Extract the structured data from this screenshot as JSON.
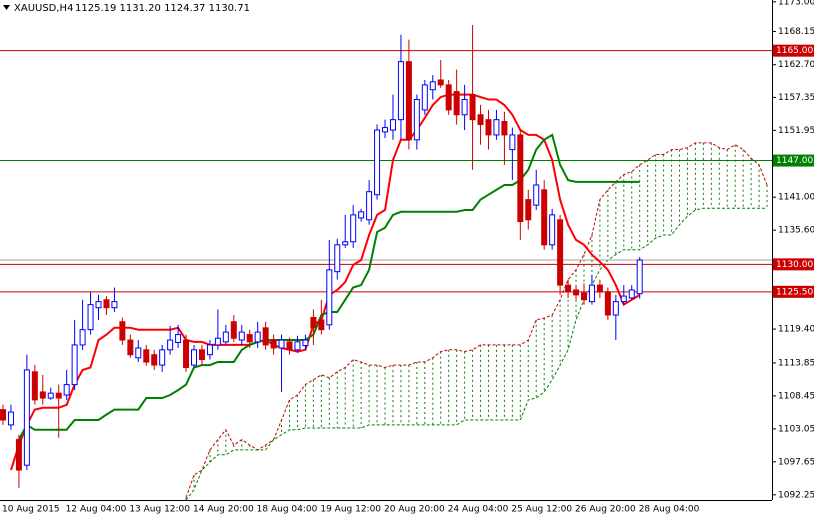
{
  "chart_data": {
    "type": "candlestick",
    "title": "XAUUSD,H4",
    "subtitle": "1125.19 1131.20 1124.37 1130.71",
    "categories": [
      "10 Aug 2015",
      null,
      null,
      null,
      null,
      null,
      null,
      null,
      "12 Aug 04:00",
      null,
      null,
      null,
      null,
      null,
      null,
      null,
      "13 Aug 12:00",
      null,
      null,
      null,
      null,
      null,
      null,
      null,
      "14 Aug 20:00",
      null,
      null,
      null,
      null,
      null,
      null,
      null,
      "18 Aug 04:00",
      null,
      null,
      null,
      null,
      null,
      null,
      null,
      "19 Aug 12:00",
      null,
      null,
      null,
      null,
      null,
      null,
      null,
      "20 Aug 20:00",
      null,
      null,
      null,
      null,
      null,
      null,
      null,
      "24 Aug 04:00",
      null,
      null,
      null,
      null,
      null,
      null,
      null,
      "25 Aug 12:00",
      null,
      null,
      null,
      null,
      null,
      null,
      null,
      "26 Aug 20:00",
      null,
      null,
      null,
      null,
      null,
      null,
      null,
      "28 Aug 04:00",
      null,
      null,
      null,
      null,
      null,
      null,
      null,
      null,
      null,
      null,
      null,
      null,
      null,
      null,
      null,
      null
    ],
    "open": [
      1106.2,
      1103.7,
      1101.3,
      1097.1,
      1112.4,
      1109.1,
      1108.1,
      1108.9,
      1108.6,
      1110.3,
      1116.8,
      1119.3,
      1122.9,
      1124.2,
      1122.9,
      1120.6,
      1117.6,
      1114.7,
      1116.0,
      1115.2,
      1113.5,
      1116.0,
      1117.2,
      1117.6,
      1113.5,
      1116.0,
      1115.2,
      1116.8,
      1117.3,
      1120.6,
      1117.6,
      1118.5,
      1117.3,
      1119.6,
      1117.6,
      1116.3,
      1117.3,
      1116.0,
      1116.7,
      1121.3,
      1120.9,
      1120.1,
      1128.8,
      1133.2,
      1133.7,
      1137.6,
      1137.3,
      1141.4,
      1151.7,
      1152.0,
      1153.7,
      1163.2,
      1150.4,
      1155.3,
      1158.6,
      1160.2,
      1159.4,
      1158.3,
      1154.5,
      1157.8,
      1154.5,
      1153.7,
      1151.2,
      1153.4,
      1148.8,
      1151.2,
      1140.6,
      1139.7,
      1142.2,
      1133.2,
      1137.3,
      1126.6,
      1125.8,
      1125.3,
      1123.9,
      1126.6,
      1125.5,
      1121.7,
      1123.9,
      1124.5,
      1125.19,
      null,
      null,
      null,
      null,
      null,
      null,
      null,
      null,
      null,
      null,
      null,
      null,
      null,
      null,
      null,
      null
    ],
    "high": [
      1107.0,
      1107.0,
      1102.1,
      1115.2,
      1113.5,
      1111.9,
      1109.8,
      1110.3,
      1112.7,
      1120.9,
      1124.2,
      1125.5,
      1125.0,
      1124.8,
      1126.2,
      1121.3,
      1118.5,
      1117.6,
      1116.8,
      1116.0,
      1116.8,
      1119.9,
      1120.1,
      1118.5,
      1116.8,
      1116.8,
      1117.6,
      1122.6,
      1120.1,
      1121.7,
      1120.1,
      1119.3,
      1120.6,
      1120.6,
      1118.5,
      1118.5,
      1118.0,
      1118.3,
      1118.5,
      1122.6,
      1124.2,
      1134.0,
      1134.2,
      1138.1,
      1139.7,
      1139.1,
      1143.8,
      1152.9,
      1153.7,
      1157.8,
      1167.6,
      1166.8,
      1157.8,
      1160.2,
      1161.0,
      1163.5,
      1160.2,
      1161.9,
      1159.4,
      1169.2,
      1156.1,
      1155.3,
      1155.3,
      1155.0,
      1152.4,
      1152.0,
      1142.2,
      1145.5,
      1143.8,
      1139.1,
      1138.1,
      1127.5,
      1126.6,
      1126.9,
      1128.3,
      1127.5,
      1126.2,
      1125.0,
      1126.6,
      1126.6,
      1131.2,
      null,
      null,
      null,
      null,
      null,
      null,
      null,
      null,
      null,
      null,
      null,
      null,
      null,
      null,
      null,
      null
    ],
    "low": [
      1103.7,
      1102.9,
      1093.4,
      1096.3,
      1107.0,
      1107.0,
      1107.8,
      1101.6,
      1107.8,
      1109.4,
      1116.0,
      1118.5,
      1120.9,
      1121.7,
      1122.2,
      1116.8,
      1114.7,
      1114.0,
      1113.4,
      1112.7,
      1112.4,
      1115.2,
      1116.3,
      1112.4,
      1113.1,
      1113.5,
      1114.4,
      1116.0,
      1116.8,
      1117.3,
      1116.8,
      1116.3,
      1116.3,
      1116.0,
      1115.2,
      1109.1,
      1115.2,
      1115.5,
      1116.0,
      1116.8,
      1118.5,
      1119.3,
      1127.5,
      1132.7,
      1132.7,
      1137.0,
      1136.5,
      1140.6,
      1150.7,
      1150.4,
      1150.4,
      1148.8,
      1148.8,
      1154.5,
      1157.0,
      1158.9,
      1154.5,
      1152.9,
      1152.0,
      1145.5,
      1149.6,
      1148.8,
      1150.4,
      1146.3,
      1143.8,
      1134.0,
      1135.7,
      1138.9,
      1132.4,
      1132.4,
      1125.0,
      1124.5,
      1124.2,
      1123.4,
      1123.4,
      1124.5,
      1120.9,
      1117.6,
      1123.4,
      1124.2,
      1124.37,
      null,
      null,
      null,
      null,
      null,
      null,
      null,
      null,
      null,
      null,
      null,
      null,
      null,
      null,
      null,
      null
    ],
    "close": [
      1104.5,
      1105.8,
      1096.3,
      1112.7,
      1107.8,
      1108.1,
      1108.9,
      1108.1,
      1110.3,
      1116.8,
      1119.3,
      1123.4,
      1123.9,
      1122.9,
      1123.9,
      1117.6,
      1115.2,
      1116.3,
      1114.0,
      1113.5,
      1116.0,
      1117.6,
      1118.5,
      1113.1,
      1116.0,
      1114.4,
      1116.8,
      1117.9,
      1118.9,
      1117.9,
      1118.9,
      1117.3,
      1118.9,
      1116.8,
      1116.3,
      1117.6,
      1116.0,
      1117.3,
      1117.6,
      1119.6,
      1119.3,
      1129.1,
      1133.2,
      1133.7,
      1138.1,
      1138.6,
      1141.9,
      1152.0,
      1152.4,
      1153.7,
      1163.2,
      1150.4,
      1157.0,
      1159.4,
      1159.9,
      1159.4,
      1155.3,
      1154.5,
      1157.0,
      1153.7,
      1152.9,
      1151.2,
      1153.7,
      1151.2,
      1151.2,
      1137.0,
      1137.3,
      1143.0,
      1133.2,
      1138.1,
      1126.6,
      1125.5,
      1125.0,
      1124.2,
      1126.6,
      1125.5,
      1121.7,
      1123.9,
      1124.8,
      1125.8,
      1130.71,
      null,
      null,
      null,
      null,
      null,
      null,
      null,
      null,
      null,
      null,
      null,
      null,
      null,
      null,
      null,
      null
    ],
    "up_color": "#0000ff",
    "down_color": "#cc0000",
    "lines": [
      {
        "color": "#ff0000",
        "values": [
          null,
          1096.3,
          1100.4,
          1103.7,
          1106.2,
          1106.5,
          1106.5,
          1106.5,
          1107.0,
          1110.3,
          1112.7,
          1113.1,
          1117.6,
          1118.5,
          1119.6,
          1119.6,
          1119.6,
          1119.3,
          1119.3,
          1119.3,
          1119.3,
          1119.3,
          1119.6,
          1117.6,
          1117.3,
          1117.3,
          1116.8,
          1116.8,
          1116.8,
          1116.8,
          1116.8,
          1116.8,
          1117.3,
          1117.6,
          1116.8,
          1116.3,
          1116.0,
          1115.7,
          1116.0,
          1120.1,
          1120.9,
          1125.0,
          1125.8,
          1127.1,
          1129.9,
          1130.7,
          1134.8,
          1138.1,
          1138.9,
          1147.1,
          1150.4,
          1150.4,
          1152.0,
          1154.0,
          1156.1,
          1157.4,
          1157.8,
          1157.8,
          1157.8,
          1157.8,
          1157.4,
          1157.0,
          1157.0,
          1156.1,
          1154.5,
          1152.0,
          1151.2,
          1151.2,
          1150.4,
          1147.1,
          1140.6,
          1136.5,
          1134.0,
          1133.2,
          1131.6,
          1130.4,
          1129.1,
          1126.6,
          1123.4,
          1124.2,
          1125.0,
          null,
          null,
          null,
          null,
          null,
          null,
          null,
          null,
          null,
          null,
          null,
          null,
          null,
          null,
          null,
          null
        ]
      },
      {
        "color": "#008000",
        "values": [
          null,
          null,
          1101.3,
          1103.7,
          1102.9,
          1102.9,
          1102.9,
          1102.9,
          1102.9,
          1104.5,
          1104.5,
          1104.5,
          1104.5,
          1105.4,
          1106.2,
          1106.2,
          1106.2,
          1106.2,
          1108.1,
          1108.1,
          1108.1,
          1108.6,
          1109.4,
          1110.3,
          1113.1,
          1113.5,
          1113.5,
          1114.0,
          1114.0,
          1114.0,
          1116.0,
          1116.8,
          1117.3,
          1117.6,
          1117.6,
          1117.6,
          1117.6,
          1117.6,
          1117.6,
          1118.5,
          1121.7,
          1122.2,
          1122.2,
          1124.2,
          1126.2,
          1126.6,
          1129.1,
          1135.3,
          1136.0,
          1138.1,
          1138.6,
          1138.6,
          1138.6,
          1138.6,
          1138.6,
          1138.6,
          1138.6,
          1138.6,
          1138.9,
          1138.9,
          1140.6,
          1141.4,
          1142.2,
          1143.0,
          1143.0,
          1143.8,
          1145.5,
          1148.8,
          1150.4,
          1151.2,
          1146.3,
          1143.8,
          1143.5,
          1143.5,
          1143.5,
          1143.5,
          1143.5,
          1143.5,
          1143.5,
          1143.5,
          1143.5,
          null,
          null,
          null,
          null,
          null,
          null,
          null,
          null,
          null,
          null,
          null,
          null,
          null,
          null,
          null,
          null
        ]
      }
    ],
    "cloud": {
      "span_a_color": "#cc0000",
      "span_b_color": "#008000",
      "hatch_color": "#008000",
      "span_a": [
        null,
        null,
        null,
        null,
        null,
        null,
        null,
        null,
        null,
        null,
        null,
        null,
        null,
        null,
        null,
        null,
        null,
        null,
        null,
        null,
        null,
        null,
        null,
        1091.8,
        1095.5,
        1096.3,
        1099.6,
        1101.3,
        1102.9,
        1100.4,
        1101.3,
        1100.4,
        1099.6,
        1100.4,
        1101.3,
        1104.5,
        1107.8,
        1108.6,
        1110.3,
        1111.1,
        1111.9,
        1111.4,
        1112.4,
        1113.1,
        1114.4,
        1114.0,
        1113.5,
        1113.5,
        1113.1,
        1113.5,
        1113.5,
        1113.5,
        1114.0,
        1114.0,
        1114.7,
        1115.7,
        1116.0,
        1116.0,
        1115.7,
        1116.0,
        1116.8,
        1116.8,
        1116.8,
        1116.8,
        1116.8,
        1116.8,
        1117.6,
        1120.9,
        1121.2,
        1121.7,
        1124.2,
        1127.5,
        1129.1,
        1131.6,
        1134.8,
        1140.6,
        1142.2,
        1143.5,
        1144.7,
        1145.2,
        1146.3,
        1147.1,
        1148.0,
        1148.0,
        1148.8,
        1148.8,
        1149.1,
        1149.9,
        1149.9,
        1149.9,
        1149.1,
        1148.8,
        1149.6,
        1148.8,
        1147.4,
        1146.3,
        1143.0
      ],
      "span_b": [
        null,
        null,
        null,
        null,
        null,
        null,
        null,
        null,
        null,
        null,
        null,
        null,
        null,
        null,
        null,
        null,
        null,
        null,
        null,
        null,
        null,
        null,
        null,
        1091.4,
        1093.1,
        1096.3,
        1097.6,
        1098.8,
        1098.8,
        1099.6,
        1099.6,
        1099.6,
        1099.6,
        1099.6,
        1101.3,
        1102.1,
        1102.9,
        1102.9,
        1103.2,
        1103.2,
        1103.2,
        1103.2,
        1103.2,
        1103.2,
        1103.2,
        1103.2,
        1103.7,
        1103.7,
        1103.7,
        1103.7,
        1103.7,
        1103.7,
        1103.7,
        1103.7,
        1103.7,
        1103.7,
        1103.7,
        1103.7,
        1104.5,
        1104.5,
        1104.5,
        1104.5,
        1104.5,
        1104.5,
        1104.5,
        1104.5,
        1107.8,
        1108.1,
        1109.1,
        1111.1,
        1113.5,
        1116.0,
        1120.9,
        1124.2,
        1126.6,
        1129.1,
        1130.7,
        1131.6,
        1132.4,
        1132.4,
        1132.4,
        1133.2,
        1134.3,
        1134.8,
        1134.8,
        1136.5,
        1137.9,
        1138.9,
        1139.2,
        1139.2,
        1139.2,
        1139.2,
        1139.2,
        1139.2,
        1139.2,
        1139.2,
        1139.2
      ]
    },
    "levels": [
      {
        "value": 1165,
        "label": "1165.00",
        "color": "#cc0000"
      },
      {
        "value": 1147,
        "label": "1147.00",
        "color": "#008000"
      },
      {
        "value": 1130,
        "label": "1130.00",
        "color": "#cc0000"
      },
      {
        "value": 1125.5,
        "label": "1125.50",
        "color": "#cc0000"
      }
    ],
    "ylim": [
      1091.4,
      1173.3
    ],
    "yticks": [
      {
        "value": 1173,
        "label": "1173.00"
      },
      1168.15,
      {
        "value": 1162.7,
        "label": "1162.70"
      },
      1157.35,
      1151.95,
      {
        "value": 1141,
        "label": "1141.00"
      },
      {
        "value": 1135.6,
        "label": "1135.60"
      },
      {
        "value": 1119.4,
        "label": "1119.40"
      },
      1113.85,
      1108.45,
      1103.05,
      1097.65,
      1092.25
    ]
  }
}
